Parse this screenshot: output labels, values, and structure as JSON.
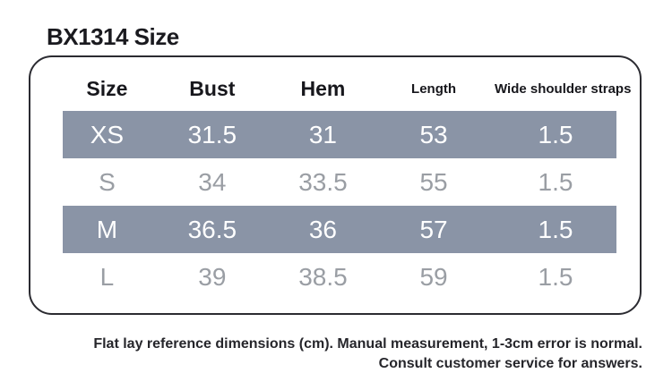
{
  "page": {
    "title": "BX1314 Size"
  },
  "chart_data": {
    "type": "table",
    "title": "BX1314 Size",
    "unit": "cm",
    "columns": [
      "Size",
      "Bust",
      "Hem",
      "Length",
      "Wide shoulder straps"
    ],
    "rows": [
      [
        "XS",
        "31.5",
        "31",
        "53",
        "1.5"
      ],
      [
        "S",
        "34",
        "33.5",
        "55",
        "1.5"
      ],
      [
        "M",
        "36.5",
        "36",
        "57",
        "1.5"
      ],
      [
        "L",
        "39",
        "38.5",
        "59",
        "1.5"
      ]
    ],
    "highlighted_rows": [
      "XS",
      "M"
    ],
    "notes": [
      "Flat lay reference dimensions (cm). Manual measurement, 1-3cm error is normal.",
      "Consult customer service for answers."
    ]
  },
  "colors": {
    "stripe_background": "#8A94A6",
    "stripe_text": "#FFFFFF",
    "muted_row_text": "#9A9EA4",
    "header_text": "#17171C",
    "card_border": "#2B2B31",
    "footnote_text": "#26262B",
    "page_background": "#FFFFFF"
  }
}
